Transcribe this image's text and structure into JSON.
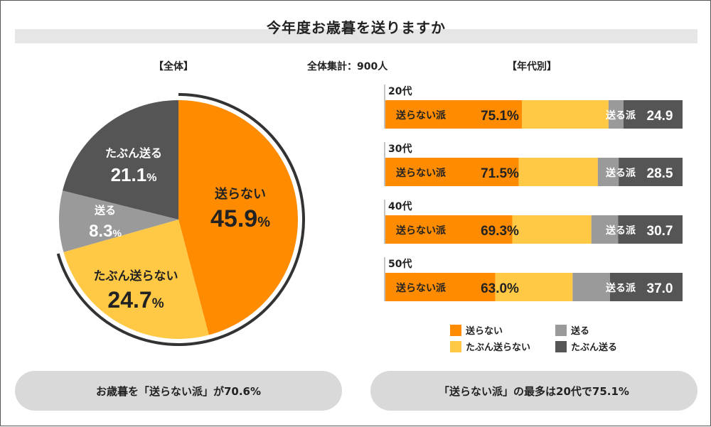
{
  "title": "今年度お歳暮を送りますか",
  "headers": {
    "overall": "【全体】",
    "total": "全体集計：900人",
    "by_age": "【年代別】"
  },
  "colors": {
    "orange": "#ff8c00",
    "yellow": "#ffc845",
    "gray": "#9a9a9a",
    "dark": "#555555"
  },
  "chart_data": [
    {
      "type": "pie",
      "title": "【全体】",
      "slices": [
        {
          "key": "okuranai",
          "label": "送らない",
          "value": 45.9,
          "display": "45.9",
          "color": "#ff8c00"
        },
        {
          "key": "tabun_okuranai",
          "label": "たぶん送らない",
          "value": 24.7,
          "display": "24.7",
          "color": "#ffc845"
        },
        {
          "key": "okuru",
          "label": "送る",
          "value": 8.3,
          "display": "8.3",
          "color": "#9a9a9a"
        },
        {
          "key": "tabun_okuru",
          "label": "たぶん送る",
          "value": 21.1,
          "display": "21.1",
          "color": "#555555"
        }
      ],
      "unit": "%"
    },
    {
      "type": "bar",
      "orientation": "horizontal-stacked",
      "title": "【年代別】",
      "categories": [
        "20代",
        "30代",
        "40代",
        "50代"
      ],
      "series": [
        {
          "name": "送らない",
          "values": [
            null,
            null,
            null,
            null
          ],
          "color": "#ff8c00"
        },
        {
          "name": "たぶん送らない",
          "values": [
            null,
            null,
            null,
            null
          ],
          "color": "#ffc845"
        },
        {
          "name": "送る",
          "values": [
            null,
            null,
            null,
            null
          ],
          "color": "#9a9a9a"
        },
        {
          "name": "たぶん送る",
          "values": [
            null,
            null,
            null,
            null
          ],
          "color": "#555555"
        }
      ],
      "okuranai_ha": [
        75.1,
        71.5,
        69.3,
        63.0
      ],
      "okuru_ha": [
        24.9,
        28.5,
        30.7,
        37.0
      ],
      "okuranai_ha_text": [
        "75.1%",
        "71.5%",
        "69.3%",
        "63.0%"
      ],
      "okuru_ha_text": [
        "24.9",
        "28.5",
        "30.7",
        "37.0"
      ],
      "okuranai_ha_label": "送らない派",
      "okuru_ha_label": "送る派",
      "okuranai_parts": [
        [
          46.0,
          29.1
        ],
        [
          44.9,
          26.6
        ],
        [
          42.7,
          26.6
        ],
        [
          37.0,
          26.0
        ]
      ],
      "okuru_parts": [
        [
          5.0,
          19.9
        ],
        [
          7.0,
          21.5
        ],
        [
          9.0,
          21.7
        ],
        [
          12.6,
          24.4
        ]
      ],
      "xlim": [
        0,
        100
      ]
    }
  ],
  "legend": [
    {
      "label": "送らない",
      "color": "#ff8c00"
    },
    {
      "label": "送る",
      "color": "#9a9a9a"
    },
    {
      "label": "たぶん送らない",
      "color": "#ffc845"
    },
    {
      "label": "たぶん送る",
      "color": "#555555"
    }
  ],
  "footer": {
    "left": "お歳暮を「送らない派」が70.6%",
    "right": "「送らない派」の最多は20代で75.1%"
  }
}
